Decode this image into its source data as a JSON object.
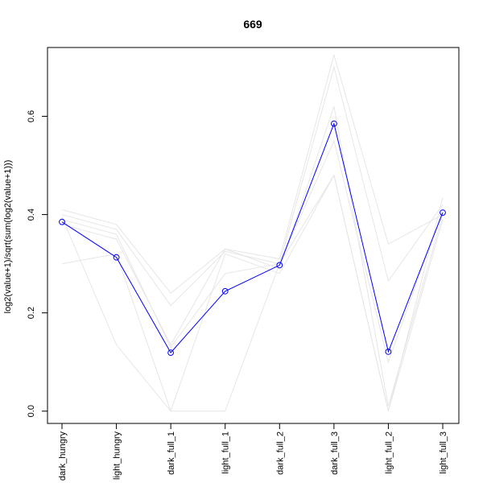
{
  "chart_data": {
    "type": "line",
    "title": "669",
    "xlabel": "",
    "ylabel": "log2(value+1)/sqrt(sum(log2(value+1)))",
    "categories": [
      "dark_hungry",
      "light_hungry",
      "dark_full_1",
      "light_full_1",
      "dark_full_2",
      "dark_full_3",
      "light_full_2",
      "light_full_3"
    ],
    "ylim": [
      -0.025,
      0.74
    ],
    "yticks": [
      0.0,
      0.2,
      0.4,
      0.6
    ],
    "ytick_labels": [
      "0.0",
      "0.2",
      "0.4",
      "0.6"
    ],
    "grid": false,
    "legend": "none",
    "highlight": {
      "color": "#0000ff",
      "marker": "open-circle",
      "values": [
        0.385,
        0.313,
        0.119,
        0.244,
        0.297,
        0.585,
        0.121,
        0.404
      ]
    },
    "background_color": "#e6e6e6",
    "background_series": [
      [
        0.41,
        0.38,
        0.24,
        0.33,
        0.31,
        0.725,
        0.34,
        0.4
      ],
      [
        0.4,
        0.37,
        0.215,
        0.325,
        0.3,
        0.7,
        0.265,
        0.42
      ],
      [
        0.39,
        0.36,
        0.13,
        0.28,
        0.3,
        0.55,
        0.1,
        0.41
      ],
      [
        0.3,
        0.32,
        0.0,
        0.0,
        0.3,
        0.48,
        0.0,
        0.435
      ],
      [
        0.395,
        0.135,
        0.0,
        0.32,
        0.28,
        0.48,
        0.0,
        0.39
      ],
      [
        0.38,
        0.35,
        0.135,
        0.33,
        0.29,
        0.62,
        0.01,
        0.4
      ]
    ]
  }
}
